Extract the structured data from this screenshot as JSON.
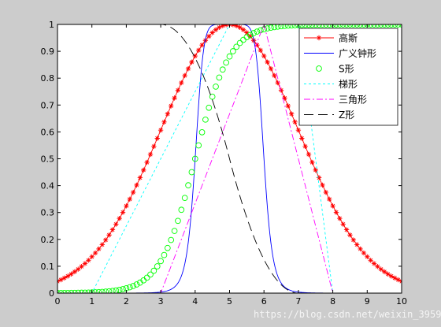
{
  "chart_data": {
    "type": "line",
    "title": "",
    "xlabel": "",
    "ylabel": "",
    "xlim": [
      0,
      10
    ],
    "ylim": [
      0,
      1
    ],
    "xticks": [
      "0",
      "1",
      "2",
      "3",
      "4",
      "5",
      "6",
      "7",
      "8",
      "9",
      "10"
    ],
    "yticks": [
      "0",
      "0.1",
      "0.2",
      "0.3",
      "0.4",
      "0.5",
      "0.6",
      "0.7",
      "0.8",
      "0.9",
      "1"
    ],
    "grid": false,
    "legend_position": "top-right",
    "series": [
      {
        "name": "高斯",
        "kind": "gaussmf",
        "params": {
          "sigma": 2,
          "c": 5
        },
        "color": "#ff0000",
        "style": "line-star"
      },
      {
        "name": "广义钟形",
        "kind": "gbellmf",
        "params": {
          "a": 1,
          "b": 4,
          "c": 5
        },
        "color": "#0000ff",
        "style": "solid"
      },
      {
        "name": "S形",
        "kind": "sigmf",
        "params": {
          "a": 2,
          "c": 4
        },
        "color": "#00ff00",
        "style": "circle"
      },
      {
        "name": "梯形",
        "kind": "trapmf",
        "params": {
          "a": 1,
          "b": 5,
          "c": 7,
          "d": 8
        },
        "color": "#00ffff",
        "style": "dotted"
      },
      {
        "name": "三角形",
        "kind": "trimf",
        "params": {
          "a": 3,
          "b": 6,
          "c": 8
        },
        "color": "#ff00ff",
        "style": "dashdot"
      },
      {
        "name": "Z形",
        "kind": "zmf",
        "params": {
          "a": 3,
          "b": 7
        },
        "color": "#000000",
        "style": "dashed"
      }
    ]
  },
  "watermark": "https://blog.csdn.net/weixin_39599031"
}
